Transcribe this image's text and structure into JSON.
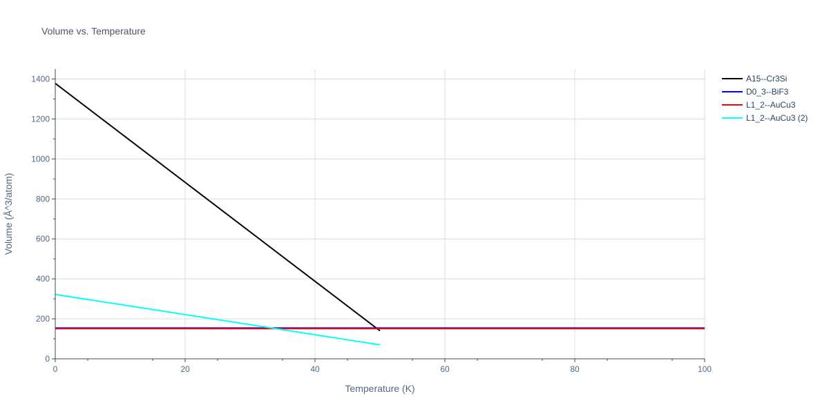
{
  "chart_data": {
    "type": "line",
    "title": "Volume vs. Temperature",
    "xlabel": "Temperature (K)",
    "ylabel": "Volume (Å^3/atom)",
    "xlim": [
      0,
      100
    ],
    "ylim": [
      0,
      1450
    ],
    "xticks": [
      0,
      20,
      40,
      60,
      80,
      100
    ],
    "yticks": [
      0,
      200,
      400,
      600,
      800,
      1000,
      1200,
      1400
    ],
    "grid": true,
    "legend_position": "top-right, outside plot",
    "series": [
      {
        "name": "A15--Cr3Si",
        "color": "#000000",
        "x": [
          0,
          50
        ],
        "y": [
          1378,
          140
        ]
      },
      {
        "name": "D0_3--BiF3",
        "color": "#0000ee",
        "x": [
          0,
          100
        ],
        "y": [
          154,
          154
        ]
      },
      {
        "name": "L1_2--AuCu3",
        "color": "#ff0000",
        "x": [
          0,
          100
        ],
        "y": [
          151,
          151
        ]
      },
      {
        "name": "L1_2--AuCu3 (2)",
        "color": "#00ffff",
        "x": [
          0,
          50
        ],
        "y": [
          322,
          70
        ]
      }
    ]
  }
}
